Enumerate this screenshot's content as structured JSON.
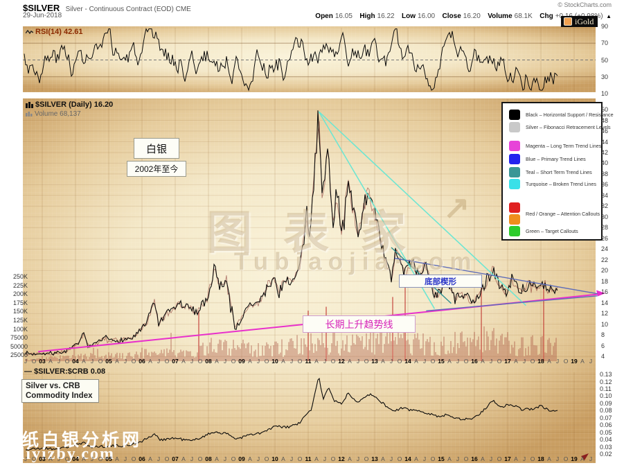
{
  "header": {
    "symbol": "$SILVER",
    "description": "Silver - Continuous Contract (EOD) CME",
    "date": "29-Jun-2018",
    "copyright": "© StockCharts.com",
    "badge": "iGold",
    "quote": {
      "open_label": "Open",
      "open": "16.05",
      "high_label": "High",
      "high": "16.22",
      "low_label": "Low",
      "low": "16.00",
      "close_label": "Close",
      "close": "16.20",
      "volume_label": "Volume",
      "volume": "68.1K",
      "chg_label": "Chg",
      "chg": "+0.16 (+0.98%)",
      "chg_dir": "▲"
    }
  },
  "rsi_panel": {
    "label": "RSI(14) 42.61",
    "axis": [
      "90",
      "70",
      "50",
      "30",
      "10"
    ]
  },
  "main_panel": {
    "label": "$SILVER (Daily) 16.20",
    "volume_label": "Volume 68,137",
    "price_axis": [
      "50",
      "48",
      "46",
      "44",
      "42",
      "40",
      "38",
      "36",
      "34",
      "32",
      "30",
      "28",
      "26",
      "24",
      "22",
      "20",
      "18",
      "16",
      "14",
      "12",
      "10",
      "8",
      "6",
      "4"
    ],
    "volume_axis": [
      "250K",
      "225K",
      "200K",
      "175K",
      "150K",
      "125K",
      "100K",
      "75000",
      "50000",
      "25000"
    ],
    "annotations": {
      "title_box": "白银",
      "subtitle_box": "2002年至今",
      "wedge_label": "底部楔形",
      "trendline_label": "长期上升趋势线"
    },
    "watermark": {
      "line1": "图表家",
      "line2": "Tubiaojia·com",
      "arrow": "↗"
    }
  },
  "legend": {
    "items": [
      {
        "swatches": [
          "#000000"
        ],
        "label": "Black – Horizontal Support / Resistance"
      },
      {
        "swatches": [
          "#c9c9c9"
        ],
        "label": "Silver – Fibonacci Retracement Levels"
      },
      {
        "swatches": [
          "#e743d8"
        ],
        "label": "Magenta – Long Term Trend Lines"
      },
      {
        "swatches": [
          "#2222ee"
        ],
        "label": "Blue – Primary Trend Lines"
      },
      {
        "swatches": [
          "#3a9696"
        ],
        "label": "Teal – Short Term Trend Lines"
      },
      {
        "swatches": [
          "#3ae0e8"
        ],
        "label": "Turquoise – Broken Trend Lines"
      },
      {
        "swatches": [
          "#e02020",
          "#ef8e1c"
        ],
        "label": "Red / Orange – Attention Callouts"
      },
      {
        "swatches": [
          "#2ccc2c"
        ],
        "label": "Green – Target Callouts"
      }
    ]
  },
  "bottom_panel": {
    "dash": "—",
    "label": "$SILVER:$CRB 0.08",
    "box_line1": "Silver vs. CRB",
    "box_line2": "Commodity Index",
    "axis": [
      "0.13",
      "0.12",
      "0.11",
      "0.10",
      "0.09",
      "0.08",
      "0.07",
      "0.06",
      "0.05",
      "0.04",
      "0.03",
      "0.02"
    ]
  },
  "x_axis": {
    "labels": [
      "J",
      "O",
      "03",
      "A",
      "J",
      "O",
      "04",
      "A",
      "J",
      "O",
      "05",
      "A",
      "J",
      "O",
      "06",
      "A",
      "J",
      "O",
      "07",
      "A",
      "J",
      "O",
      "08",
      "A",
      "J",
      "O",
      "09",
      "A",
      "J",
      "O",
      "10",
      "A",
      "J",
      "O",
      "11",
      "A",
      "J",
      "O",
      "12",
      "A",
      "J",
      "O",
      "13",
      "A",
      "J",
      "O",
      "14",
      "A",
      "J",
      "O",
      "15",
      "A",
      "J",
      "O",
      "16",
      "A",
      "J",
      "O",
      "17",
      "A",
      "J",
      "O",
      "18",
      "A",
      "J",
      "O",
      "19",
      "A",
      "J"
    ]
  },
  "watermark_bl": {
    "line1": "一纸白银分析网",
    "line2": "w.diyizby.com"
  },
  "chart_data": {
    "type": "line",
    "x_unit": "year",
    "x_domain": [
      2002.5,
      2019.6
    ],
    "panels": [
      {
        "id": "rsi",
        "indicator": "RSI(14)",
        "current": 42.61,
        "range": [
          10,
          90
        ],
        "gridlines": [
          70,
          50,
          30
        ]
      },
      {
        "id": "price",
        "series": "$SILVER daily",
        "current": 16.2,
        "y_range": [
          4,
          50
        ],
        "anchors_year_price": [
          [
            2002.5,
            4.7
          ],
          [
            2002.7,
            4.4
          ],
          [
            2002.95,
            4.7
          ],
          [
            2003.2,
            4.5
          ],
          [
            2003.5,
            4.7
          ],
          [
            2003.8,
            5.2
          ],
          [
            2004.0,
            6.0
          ],
          [
            2004.25,
            8.1
          ],
          [
            2004.4,
            5.7
          ],
          [
            2004.6,
            6.2
          ],
          [
            2004.9,
            7.5
          ],
          [
            2005.1,
            6.9
          ],
          [
            2005.4,
            7.1
          ],
          [
            2005.7,
            7.4
          ],
          [
            2005.95,
            8.8
          ],
          [
            2006.15,
            10.2
          ],
          [
            2006.37,
            14.6
          ],
          [
            2006.5,
            9.9
          ],
          [
            2006.7,
            11.6
          ],
          [
            2006.95,
            13.0
          ],
          [
            2007.15,
            13.8
          ],
          [
            2007.45,
            12.9
          ],
          [
            2007.65,
            12.3
          ],
          [
            2007.95,
            14.6
          ],
          [
            2008.2,
            20.5
          ],
          [
            2008.35,
            16.8
          ],
          [
            2008.55,
            18.8
          ],
          [
            2008.8,
            9.2
          ],
          [
            2009.0,
            11.2
          ],
          [
            2009.25,
            13.7
          ],
          [
            2009.5,
            13.8
          ],
          [
            2009.75,
            16.5
          ],
          [
            2009.95,
            18.8
          ],
          [
            2010.1,
            16.2
          ],
          [
            2010.35,
            18.5
          ],
          [
            2010.55,
            17.8
          ],
          [
            2010.75,
            20.8
          ],
          [
            2010.95,
            29.0
          ],
          [
            2011.05,
            26.8
          ],
          [
            2011.32,
            49.3
          ],
          [
            2011.42,
            33.5
          ],
          [
            2011.6,
            42.5
          ],
          [
            2011.75,
            29.0
          ],
          [
            2011.85,
            34.5
          ],
          [
            2012.0,
            27.5
          ],
          [
            2012.18,
            36.5
          ],
          [
            2012.5,
            26.8
          ],
          [
            2012.78,
            34.8
          ],
          [
            2013.0,
            30.5
          ],
          [
            2013.25,
            23.5
          ],
          [
            2013.5,
            18.5
          ],
          [
            2013.65,
            24.0
          ],
          [
            2013.9,
            19.5
          ],
          [
            2014.1,
            21.8
          ],
          [
            2014.35,
            18.8
          ],
          [
            2014.5,
            21.3
          ],
          [
            2014.8,
            15.6
          ],
          [
            2015.0,
            15.8
          ],
          [
            2015.12,
            18.3
          ],
          [
            2015.45,
            14.9
          ],
          [
            2015.7,
            15.6
          ],
          [
            2015.95,
            13.8
          ],
          [
            2016.15,
            15.5
          ],
          [
            2016.35,
            17.4
          ],
          [
            2016.55,
            20.4
          ],
          [
            2016.75,
            17.2
          ],
          [
            2016.95,
            15.9
          ],
          [
            2017.12,
            18.4
          ],
          [
            2017.3,
            16.9
          ],
          [
            2017.45,
            16.1
          ],
          [
            2017.68,
            17.9
          ],
          [
            2017.9,
            16.2
          ],
          [
            2018.05,
            17.4
          ],
          [
            2018.25,
            16.3
          ],
          [
            2018.4,
            16.6
          ],
          [
            2018.5,
            16.2
          ]
        ]
      },
      {
        "id": "volume",
        "current": 68137,
        "axis_max_K": 250,
        "envelope_year_avgK": [
          [
            2002.5,
            8
          ],
          [
            2003.5,
            12
          ],
          [
            2004.5,
            18
          ],
          [
            2005.5,
            18
          ],
          [
            2006.0,
            28
          ],
          [
            2007.0,
            26
          ],
          [
            2008.0,
            40
          ],
          [
            2008.6,
            50
          ],
          [
            2009.5,
            38
          ],
          [
            2010.5,
            48
          ],
          [
            2011.3,
            75
          ],
          [
            2012.0,
            52
          ],
          [
            2013.0,
            62
          ],
          [
            2013.4,
            95
          ],
          [
            2014.0,
            62
          ],
          [
            2015.0,
            58
          ],
          [
            2016.0,
            62
          ],
          [
            2016.6,
            80
          ],
          [
            2017.2,
            50
          ],
          [
            2018.0,
            58
          ],
          [
            2018.5,
            62
          ]
        ]
      },
      {
        "id": "ratio",
        "series": "$SILVER:$CRB",
        "current": 0.08,
        "y_range": [
          0.02,
          0.13
        ],
        "anchors_year_value": [
          [
            2002.5,
            0.026
          ],
          [
            2003.0,
            0.028
          ],
          [
            2003.5,
            0.027
          ],
          [
            2004.25,
            0.035
          ],
          [
            2004.5,
            0.03
          ],
          [
            2005.0,
            0.031
          ],
          [
            2005.6,
            0.032
          ],
          [
            2006.0,
            0.038
          ],
          [
            2006.37,
            0.047
          ],
          [
            2006.55,
            0.04
          ],
          [
            2007.0,
            0.042
          ],
          [
            2007.5,
            0.038
          ],
          [
            2008.2,
            0.051
          ],
          [
            2008.6,
            0.047
          ],
          [
            2008.85,
            0.041
          ],
          [
            2009.2,
            0.046
          ],
          [
            2009.6,
            0.049
          ],
          [
            2010.0,
            0.058
          ],
          [
            2010.4,
            0.057
          ],
          [
            2010.75,
            0.063
          ],
          [
            2010.95,
            0.075
          ],
          [
            2011.1,
            0.082
          ],
          [
            2011.32,
            0.127
          ],
          [
            2011.45,
            0.096
          ],
          [
            2011.6,
            0.112
          ],
          [
            2011.8,
            0.093
          ],
          [
            2012.0,
            0.089
          ],
          [
            2012.2,
            0.104
          ],
          [
            2012.5,
            0.092
          ],
          [
            2012.8,
            0.103
          ],
          [
            2013.0,
            0.099
          ],
          [
            2013.3,
            0.088
          ],
          [
            2013.55,
            0.079
          ],
          [
            2013.8,
            0.083
          ],
          [
            2014.1,
            0.081
          ],
          [
            2014.5,
            0.078
          ],
          [
            2014.9,
            0.072
          ],
          [
            2015.2,
            0.074
          ],
          [
            2015.6,
            0.068
          ],
          [
            2015.95,
            0.069
          ],
          [
            2016.2,
            0.077
          ],
          [
            2016.55,
            0.094
          ],
          [
            2016.8,
            0.085
          ],
          [
            2017.1,
            0.089
          ],
          [
            2017.4,
            0.082
          ],
          [
            2017.7,
            0.082
          ],
          [
            2018.0,
            0.086
          ],
          [
            2018.2,
            0.081
          ],
          [
            2018.4,
            0.079
          ],
          [
            2018.5,
            0.08
          ]
        ]
      }
    ],
    "trendlines": [
      {
        "color": "magenta",
        "from": [
          2002.88,
          4.9
        ],
        "to": [
          2019.81,
          15.65
        ],
        "arrow": true
      },
      {
        "color": "turquoise",
        "from": [
          2011.32,
          49.6
        ],
        "to": [
          2014.8,
          12.9
        ]
      },
      {
        "color": "turquoise",
        "from": [
          2011.32,
          49.6
        ],
        "to": [
          2017.55,
          13.5
        ]
      },
      {
        "color": "blue",
        "from": [
          2013.6,
          22.3
        ],
        "to": [
          2019.7,
          15.7
        ]
      },
      {
        "color": "blue",
        "from": [
          2014.55,
          12.5
        ],
        "to": [
          2019.7,
          15.3
        ]
      },
      {
        "color": "teal",
        "from": [
          2013.5,
          24.3
        ],
        "to": [
          2015.3,
          13.9
        ]
      }
    ]
  }
}
